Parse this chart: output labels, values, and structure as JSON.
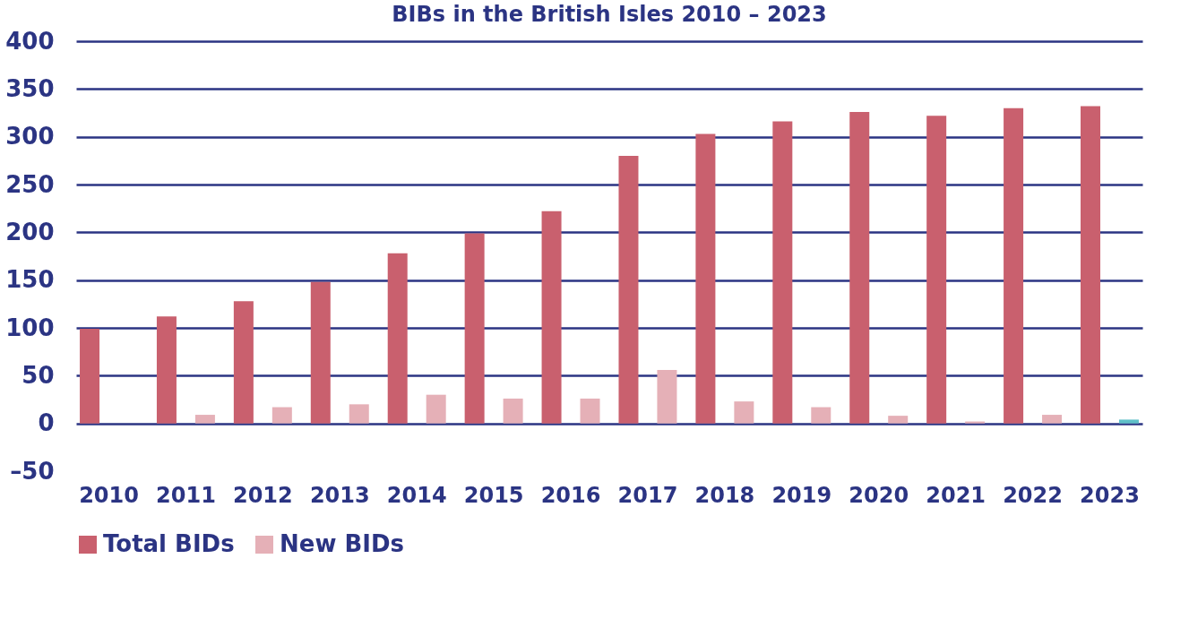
{
  "chart_data": {
    "type": "bar",
    "title": "BIBs in the British Isles 2010 – 2023",
    "categories": [
      "2010",
      "2011",
      "2012",
      "2013",
      "2014",
      "2015",
      "2016",
      "2017",
      "2018",
      "2019",
      "2020",
      "2021",
      "2022",
      "2023"
    ],
    "series": [
      {
        "name": "Total BIDs",
        "color": "#c9606e",
        "values": [
          99,
          112,
          128,
          148,
          178,
          199,
          222,
          280,
          303,
          316,
          326,
          322,
          330,
          332
        ]
      },
      {
        "name": "New BIDs",
        "color": "#e5b0b7",
        "colors": [
          "#e5b0b7",
          "#e5b0b7",
          "#e5b0b7",
          "#e5b0b7",
          "#e5b0b7",
          "#e5b0b7",
          "#e5b0b7",
          "#e5b0b7",
          "#e5b0b7",
          "#e5b0b7",
          "#e5b0b7",
          "#e5b0b7",
          "#e5b0b7",
          "#5fc0c8"
        ],
        "values": [
          null,
          9,
          17,
          20,
          30,
          26,
          26,
          56,
          23,
          17,
          8,
          2,
          9,
          4
        ]
      }
    ],
    "ylim": [
      -50,
      400
    ],
    "yticks": [
      {
        "value": -50,
        "label": "–50"
      },
      0,
      50,
      100,
      150,
      200,
      250,
      300,
      350,
      400
    ],
    "grid": "y",
    "legend": "bottom"
  }
}
